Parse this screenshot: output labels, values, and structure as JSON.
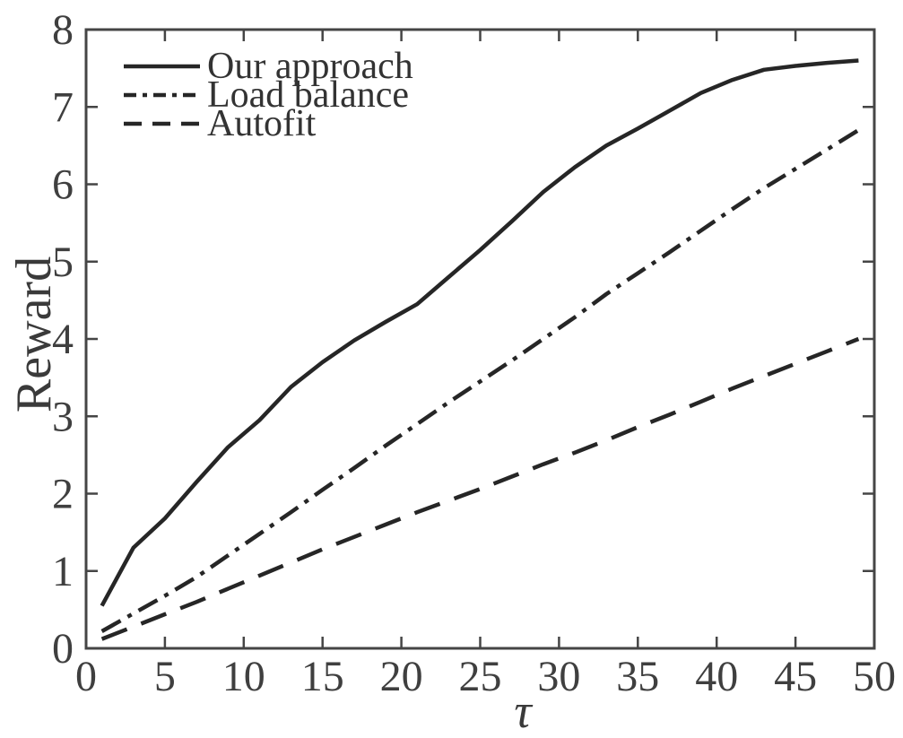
{
  "colors": {
    "line": "#262626",
    "axis": "#454545",
    "text": "#3f3f3f"
  },
  "chart_data": {
    "type": "line",
    "title": "",
    "xlabel": "τ",
    "ylabel": "Reward",
    "xlim": [
      0,
      50
    ],
    "ylim": [
      0,
      8
    ],
    "x_ticks": [
      0,
      5,
      10,
      15,
      20,
      25,
      30,
      35,
      40,
      45,
      50
    ],
    "y_ticks": [
      0,
      1,
      2,
      3,
      4,
      5,
      6,
      7,
      8
    ],
    "grid": false,
    "legend_position": "top-left",
    "x": [
      1,
      3,
      5,
      7,
      9,
      11,
      13,
      15,
      17,
      19,
      21,
      23,
      25,
      27,
      29,
      31,
      33,
      35,
      37,
      39,
      41,
      43,
      45,
      47,
      49
    ],
    "series": [
      {
        "name": "Our approach",
        "line_style": "solid",
        "values": [
          0.55,
          1.3,
          1.68,
          2.15,
          2.6,
          2.95,
          3.38,
          3.7,
          3.98,
          4.22,
          4.45,
          4.8,
          5.15,
          5.52,
          5.9,
          6.22,
          6.5,
          6.72,
          6.95,
          7.18,
          7.35,
          7.48,
          7.53,
          7.57,
          7.6
        ]
      },
      {
        "name": "Load balance",
        "line_style": "dashdot",
        "values": [
          0.22,
          0.45,
          0.68,
          0.92,
          1.2,
          1.48,
          1.76,
          2.05,
          2.33,
          2.62,
          2.9,
          3.18,
          3.45,
          3.72,
          4.0,
          4.28,
          4.58,
          4.85,
          5.12,
          5.4,
          5.68,
          5.95,
          6.2,
          6.45,
          6.7
        ]
      },
      {
        "name": "Autofit",
        "line_style": "dashed",
        "values": [
          0.12,
          0.28,
          0.44,
          0.6,
          0.77,
          0.94,
          1.11,
          1.28,
          1.44,
          1.6,
          1.76,
          1.91,
          2.06,
          2.22,
          2.38,
          2.53,
          2.69,
          2.86,
          3.02,
          3.19,
          3.36,
          3.52,
          3.68,
          3.84,
          4.0
        ]
      }
    ]
  }
}
